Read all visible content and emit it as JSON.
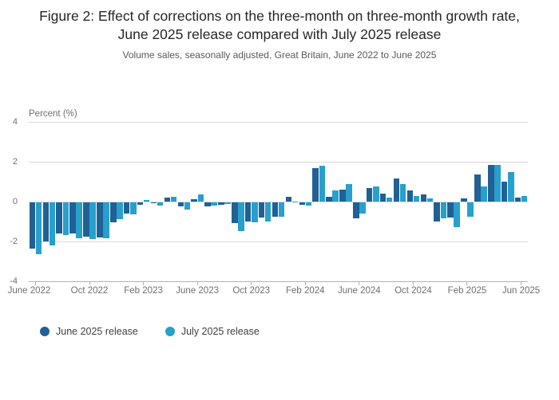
{
  "header": {
    "title": "Figure 2: Effect of corrections on the three-month on three-month growth rate, June 2025 release compared with July 2025 release",
    "subtitle": "Volume sales, seasonally adjusted, Great Britain, June 2022 to June 2025"
  },
  "chart_data": {
    "type": "bar",
    "title": "Figure 2: Effect of corrections on the three-month on three-month growth rate, June 2025 release compared with July 2025 release",
    "subtitle": "Volume sales, seasonally adjusted, Great Britain, June 2022 to June 2025",
    "ylabel": "Percent (%)",
    "xlabel": "",
    "ylim": [
      -4,
      4
    ],
    "yticks": [
      4,
      2,
      0,
      -2,
      -4
    ],
    "grid": "horizontal",
    "legend_position": "bottom-left",
    "categories": [
      "Jun 2022",
      "Jul 2022",
      "Aug 2022",
      "Sep 2022",
      "Oct 2022",
      "Nov 2022",
      "Dec 2022",
      "Jan 2023",
      "Feb 2023",
      "Mar 2023",
      "Apr 2023",
      "May 2023",
      "Jun 2023",
      "Jul 2023",
      "Aug 2023",
      "Sep 2023",
      "Oct 2023",
      "Nov 2023",
      "Dec 2023",
      "Jan 2024",
      "Feb 2024",
      "Mar 2024",
      "Apr 2024",
      "May 2024",
      "Jun 2024",
      "Jul 2024",
      "Aug 2024",
      "Sep 2024",
      "Oct 2024",
      "Nov 2024",
      "Dec 2024",
      "Jan 2025",
      "Feb 2025",
      "Mar 2025",
      "Apr 2025",
      "May 2025",
      "Jun 2025"
    ],
    "x_tick_labels": [
      "June 2022",
      "Oct 2022",
      "Feb 2023",
      "June 2023",
      "Oct 2023",
      "Feb 2024",
      "June 2024",
      "Oct 2024",
      "Feb 2025",
      "Jun 2025"
    ],
    "x_tick_indices": [
      0,
      4,
      8,
      12,
      16,
      20,
      24,
      28,
      32,
      36
    ],
    "series": [
      {
        "name": "June 2025 release",
        "color": "#206095",
        "values": [
          -2.3,
          -1.95,
          -1.55,
          -1.55,
          -1.7,
          -1.75,
          -1.0,
          -0.55,
          -0.1,
          -0.04,
          0.2,
          -0.2,
          0.12,
          -0.2,
          -0.1,
          -1.05,
          -0.95,
          -0.75,
          -0.7,
          0.25,
          -0.1,
          1.7,
          0.25,
          0.6,
          -0.8,
          0.7,
          0.4,
          1.15,
          0.55,
          0.35,
          -0.95,
          -0.75,
          0.15,
          1.35,
          1.85,
          1.0,
          0.2
        ]
      },
      {
        "name": "July 2025 release",
        "color": "#27A0CC",
        "values": [
          -2.6,
          -2.15,
          -1.65,
          -1.8,
          -1.85,
          -1.8,
          -0.85,
          -0.6,
          0.1,
          -0.15,
          0.25,
          -0.35,
          0.35,
          -0.15,
          -0.08,
          -1.45,
          -1.0,
          -0.95,
          -0.7,
          0.02,
          -0.17,
          1.8,
          0.55,
          0.9,
          -0.55,
          0.75,
          0.2,
          0.9,
          0.3,
          0.15,
          -0.8,
          -1.25,
          -0.7,
          0.75,
          1.85,
          1.5,
          0.3
        ]
      }
    ],
    "colors": {
      "grid": "#d9d9d9",
      "axis": "#b3b3b3",
      "tick_text": "#707071"
    }
  }
}
